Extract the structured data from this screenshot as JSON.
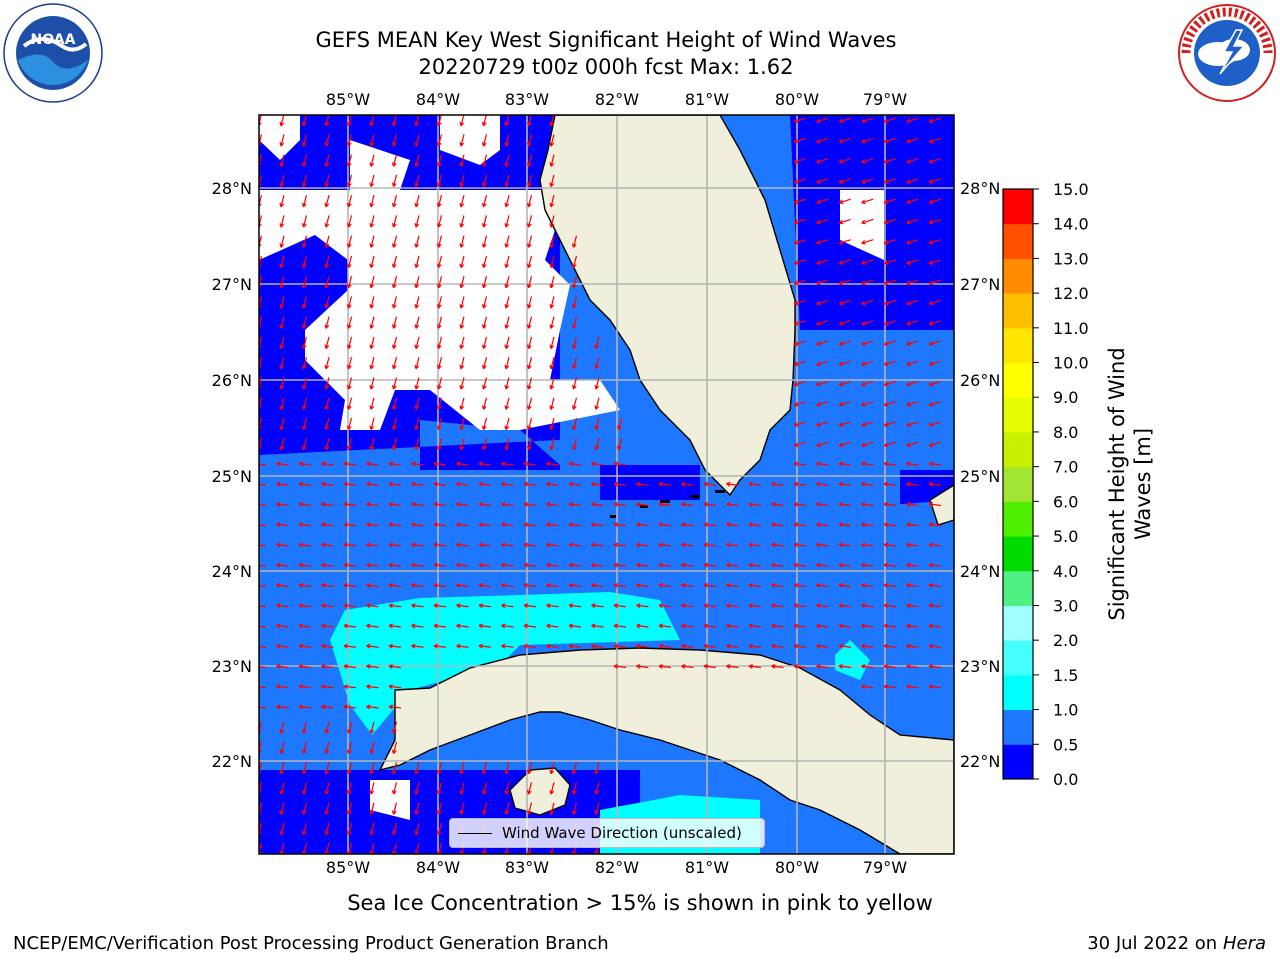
{
  "title": {
    "line1": "GEFS MEAN Key West Significant Height of Wind Waves",
    "line2": "20220729 t00z 000h fcst   Max: 1.62"
  },
  "map": {
    "lon_labels": [
      "85°W",
      "84°W",
      "83°W",
      "82°W",
      "81°W",
      "80°W",
      "79°W"
    ],
    "lat_labels": [
      "28°N",
      "27°N",
      "26°N",
      "25°N",
      "24°N",
      "23°N",
      "22°N"
    ],
    "land_color": "#efefdb",
    "missing_color": "#ffffff",
    "arrow_color": "#ff0000"
  },
  "legend": {
    "label": "Wind Wave Direction (unscaled)"
  },
  "colorbar": {
    "label_line1": "Significant Height of Wind",
    "label_line2": "Waves [m]",
    "ticks": [
      "0.0",
      "0.5",
      "1.0",
      "1.5",
      "2.0",
      "3.0",
      "4.0",
      "5.0",
      "6.0",
      "7.0",
      "8.0",
      "9.0",
      "10.0",
      "11.0",
      "12.0",
      "13.0",
      "14.0",
      "15.0"
    ],
    "colors": [
      "#0000ff",
      "#1e78ff",
      "#00ffff",
      "#46ffff",
      "#a0ffff",
      "#50f082",
      "#00dc00",
      "#50f000",
      "#a0e632",
      "#c8f000",
      "#e6ff00",
      "#ffff00",
      "#ffe600",
      "#ffbe00",
      "#ff8c00",
      "#ff5000",
      "#ff0000"
    ]
  },
  "subtitle": "Sea Ice Concentration > 15% is shown in pink to yellow",
  "footer": {
    "left": "NCEP/EMC/Verification Post Processing Product Generation Branch",
    "right_date": "30 Jul 2022 on ",
    "right_host": "Hera"
  }
}
